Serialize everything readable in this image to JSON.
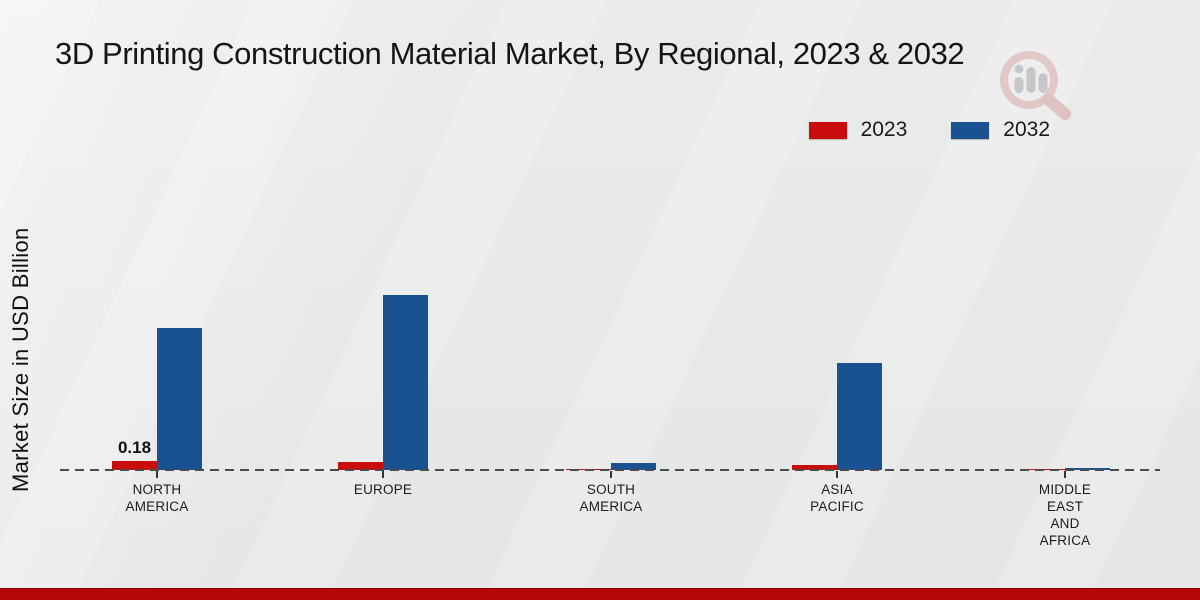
{
  "chart_data": {
    "type": "bar",
    "title": "3D Printing Construction Material Market, By Regional, 2023 & 2032",
    "xlabel": "",
    "ylabel": "Market Size in USD Billion",
    "categories": [
      "NORTH AMERICA",
      "EUROPE",
      "SOUTH AMERICA",
      "ASIA PACIFIC",
      "MIDDLE EAST AND AFRICA"
    ],
    "category_lines": [
      [
        "NORTH",
        "AMERICA"
      ],
      [
        "EUROPE"
      ],
      [
        "SOUTH",
        "AMERICA"
      ],
      [
        "ASIA",
        "PACIFIC"
      ],
      [
        "MIDDLE",
        "EAST",
        "AND",
        "AFRICA"
      ]
    ],
    "series": [
      {
        "name": "2023",
        "color": "#c90d0d",
        "values": [
          0.18,
          0.16,
          0.01,
          0.1,
          0.01
        ]
      },
      {
        "name": "2032",
        "color": "#1a5191",
        "values": [
          2.85,
          3.5,
          0.15,
          2.15,
          0.05
        ]
      }
    ],
    "data_labels": [
      {
        "series_index": 0,
        "category_index": 0,
        "text": "0.18"
      }
    ],
    "ylim": [
      0,
      4
    ],
    "grid": "off",
    "baseline_style": "dashed",
    "legend_position": "top-right",
    "units": "USD Billion"
  },
  "branding": {
    "logo_icon": "magnifier-bar-chart-watermark"
  },
  "colors": {
    "background": "#e8e9e9",
    "bottom_band": "#b50707",
    "baseline": "#4c4c4c",
    "series_2023": "#c90d0d",
    "series_2032": "#1a5191"
  }
}
